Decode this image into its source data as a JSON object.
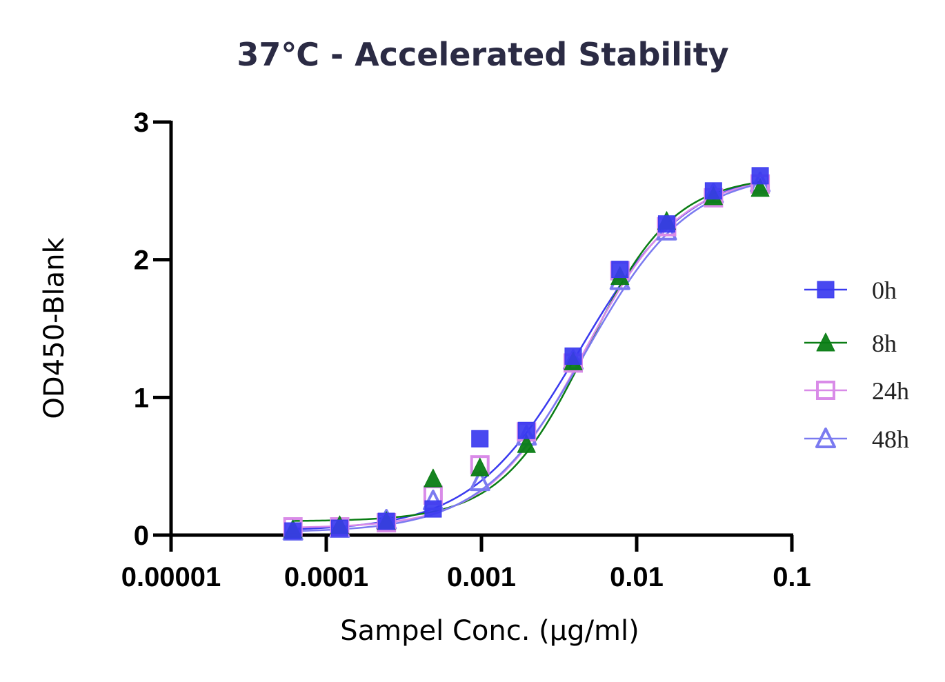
{
  "chart_data": {
    "type": "scatter",
    "title": "37℃ - Accelerated Stability",
    "xlabel": "Sampel Conc. (μg/ml)",
    "ylabel": "OD450-Blank",
    "xscale": "log",
    "xlim": [
      1e-05,
      0.1
    ],
    "ylim": [
      0,
      3
    ],
    "x_ticks": [
      1e-05,
      0.0001,
      0.001,
      0.01,
      0.1
    ],
    "x_tick_labels": [
      "0.00001",
      "0.0001",
      "0.001",
      "0.01",
      "0.1"
    ],
    "y_ticks": [
      0,
      1,
      2,
      3
    ],
    "y_tick_labels": [
      "0",
      "1",
      "2",
      "3"
    ],
    "grid": false,
    "legend_position": "right",
    "fitted_curves": true,
    "x": [
      6.1e-05,
      0.000122,
      0.000244,
      0.000488,
      0.000977,
      0.00195,
      0.0039,
      0.0078,
      0.0156,
      0.03125,
      0.0625
    ],
    "series": [
      {
        "name": "0h",
        "marker": "filled-square",
        "color": "#3a3aef",
        "values": [
          0.03,
          0.05,
          0.1,
          0.19,
          0.7,
          0.76,
          1.3,
          1.93,
          2.26,
          2.5,
          2.61
        ],
        "fit": {
          "bottom": 0.03,
          "top": 2.66,
          "ec50": 0.0043,
          "hill": 1.25
        }
      },
      {
        "name": "8h",
        "marker": "filled-triangle",
        "color": "#0a7d14",
        "values": [
          0.04,
          0.07,
          0.1,
          0.41,
          0.49,
          0.66,
          1.26,
          1.88,
          2.28,
          2.46,
          2.52
        ],
        "fit": {
          "bottom": 0.1,
          "top": 2.61,
          "ec50": 0.0048,
          "hill": 1.55
        }
      },
      {
        "name": "24h",
        "marker": "open-square",
        "color": "#d98be8",
        "values": [
          0.06,
          0.06,
          0.09,
          0.29,
          0.51,
          0.75,
          1.25,
          1.92,
          2.24,
          2.45,
          2.55
        ],
        "fit": {
          "bottom": 0.05,
          "top": 2.62,
          "ec50": 0.0046,
          "hill": 1.4
        }
      },
      {
        "name": "48h",
        "marker": "open-triangle",
        "color": "#7a7af0",
        "values": [
          0.03,
          0.05,
          0.11,
          0.25,
          0.39,
          0.72,
          1.27,
          1.85,
          2.21,
          2.48,
          2.56
        ],
        "fit": {
          "bottom": 0.02,
          "top": 2.64,
          "ec50": 0.0047,
          "hill": 1.3
        }
      }
    ]
  }
}
